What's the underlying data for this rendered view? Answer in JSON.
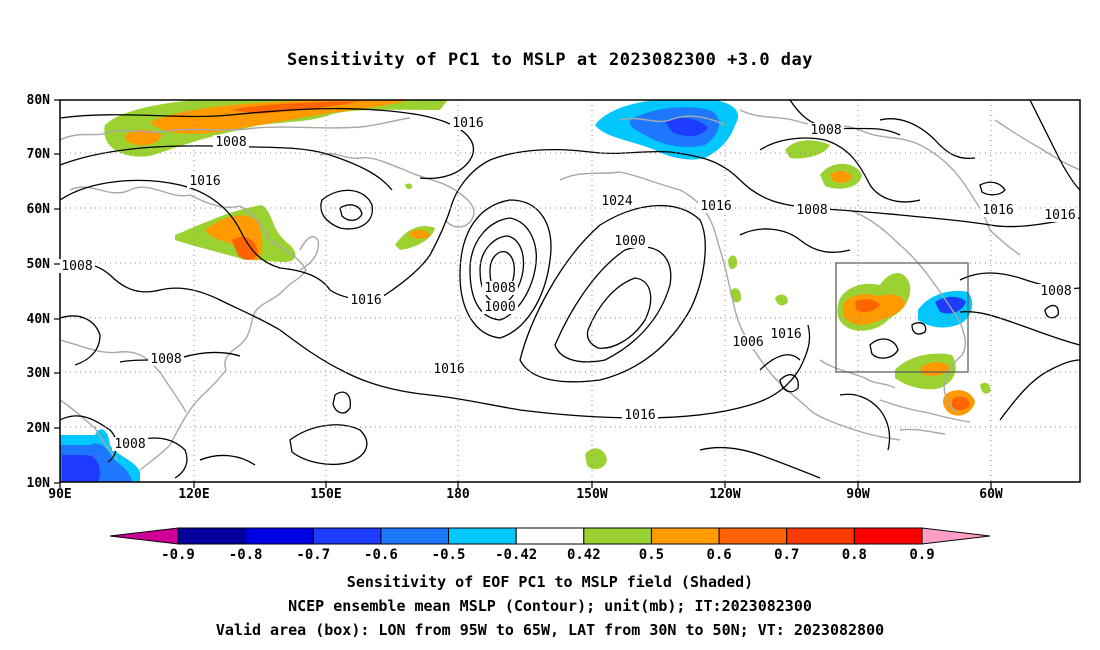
{
  "title": "Sensitivity of PC1 to MSLP at 2023082300 +3.0 day",
  "lat_labels": [
    "80N",
    "70N",
    "60N",
    "50N",
    "40N",
    "30N",
    "20N",
    "10N"
  ],
  "lon_labels": [
    "90E",
    "120E",
    "150E",
    "180",
    "150W",
    "120W",
    "90W",
    "60W"
  ],
  "contour_labels": [
    "1016",
    "1008",
    "1016",
    "1008",
    "1016",
    "1008",
    "1016",
    "1024",
    "1000",
    "1008",
    "1000",
    "1008",
    "1016",
    "1008",
    "1016",
    "1016",
    "1008",
    "1016",
    "1006",
    "1008",
    "1016"
  ],
  "colorbar": {
    "labels": [
      "-0.9",
      "-0.8",
      "-0.7",
      "-0.6",
      "-0.5",
      "-0.42",
      "0.42",
      "0.5",
      "0.6",
      "0.7",
      "0.8",
      "0.9"
    ],
    "colors": [
      "#cc0099",
      "#00009e",
      "#0000e8",
      "#1c3cff",
      "#1e78ff",
      "#00c8ff",
      "#ffffff",
      "#9bd232",
      "#ff9a00",
      "#ff6400",
      "#ff3c00",
      "#ff0000",
      "#ff9ec8"
    ]
  },
  "footer": {
    "line1": "Sensitivity of EOF PC1 to MSLP field (Shaded)",
    "line2": "NCEP ensemble mean MSLP (Contour); unit(mb); IT:2023082300",
    "line3": "Valid area (box): LON from 95W to 65W, LAT from 30N to 50N; VT: 2023082800"
  }
}
